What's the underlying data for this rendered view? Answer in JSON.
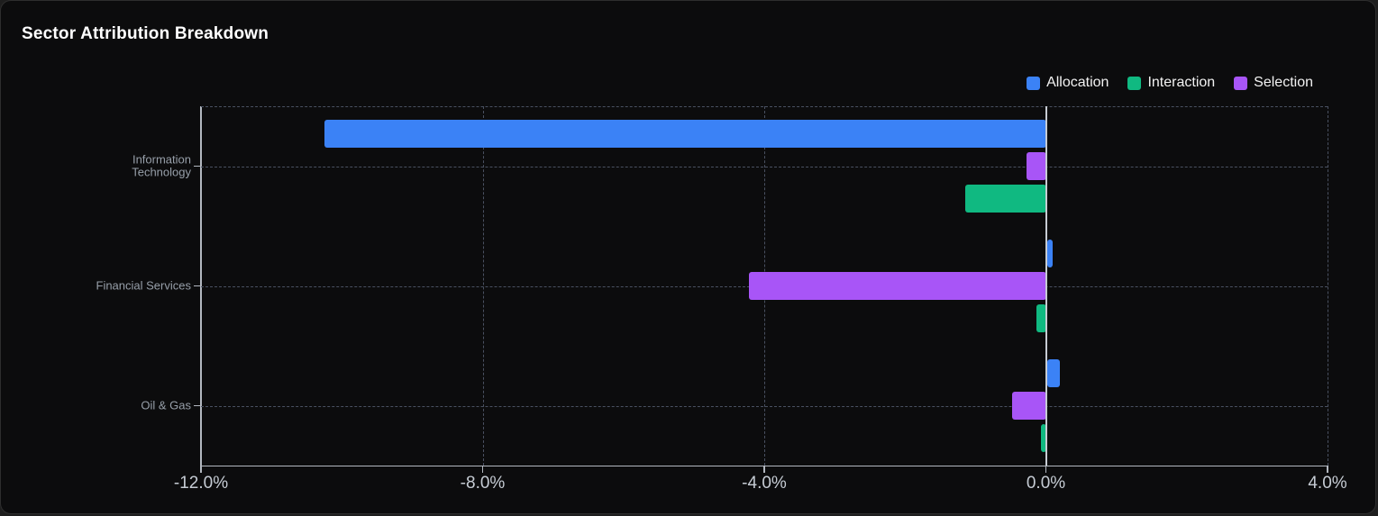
{
  "card": {
    "title": "Sector Attribution Breakdown"
  },
  "chart_data": {
    "type": "bar",
    "orientation": "horizontal",
    "title": "Sector Attribution Breakdown",
    "categories": [
      "Information Technology",
      "Financial Services",
      "Oil & Gas"
    ],
    "series": [
      {
        "name": "Allocation",
        "color": "#3b82f6",
        "values": [
          -10.25,
          0.08,
          0.19
        ]
      },
      {
        "name": "Interaction",
        "color": "#10b981",
        "values": [
          -1.15,
          -0.13,
          -0.07
        ]
      },
      {
        "name": "Selection",
        "color": "#a855f7",
        "values": [
          -0.28,
          -4.22,
          -0.48
        ]
      }
    ],
    "bar_order": [
      "Allocation",
      "Selection",
      "Interaction"
    ],
    "value_unit": "%",
    "xlim": [
      -12,
      4
    ],
    "x_ticks": [
      -12,
      -8,
      -4,
      0,
      4
    ],
    "x_tick_labels": [
      "-12.0%",
      "-8.0%",
      "-4.0%",
      "0.0%",
      "4.0%"
    ],
    "legend_position": "top-right",
    "grid": "dashed",
    "theme": {
      "background": "#0c0c0d",
      "card_border": "#2e2e2e",
      "axis_color": "#b3b8c0",
      "zero_line_color": "#c7ccd3",
      "grid_color": "#4a5161",
      "tick_label_color": "#c6ccd4",
      "category_label_color": "#979fa9",
      "title_color": "#ffffff",
      "legend_text_color": "#f2f2f2"
    }
  }
}
